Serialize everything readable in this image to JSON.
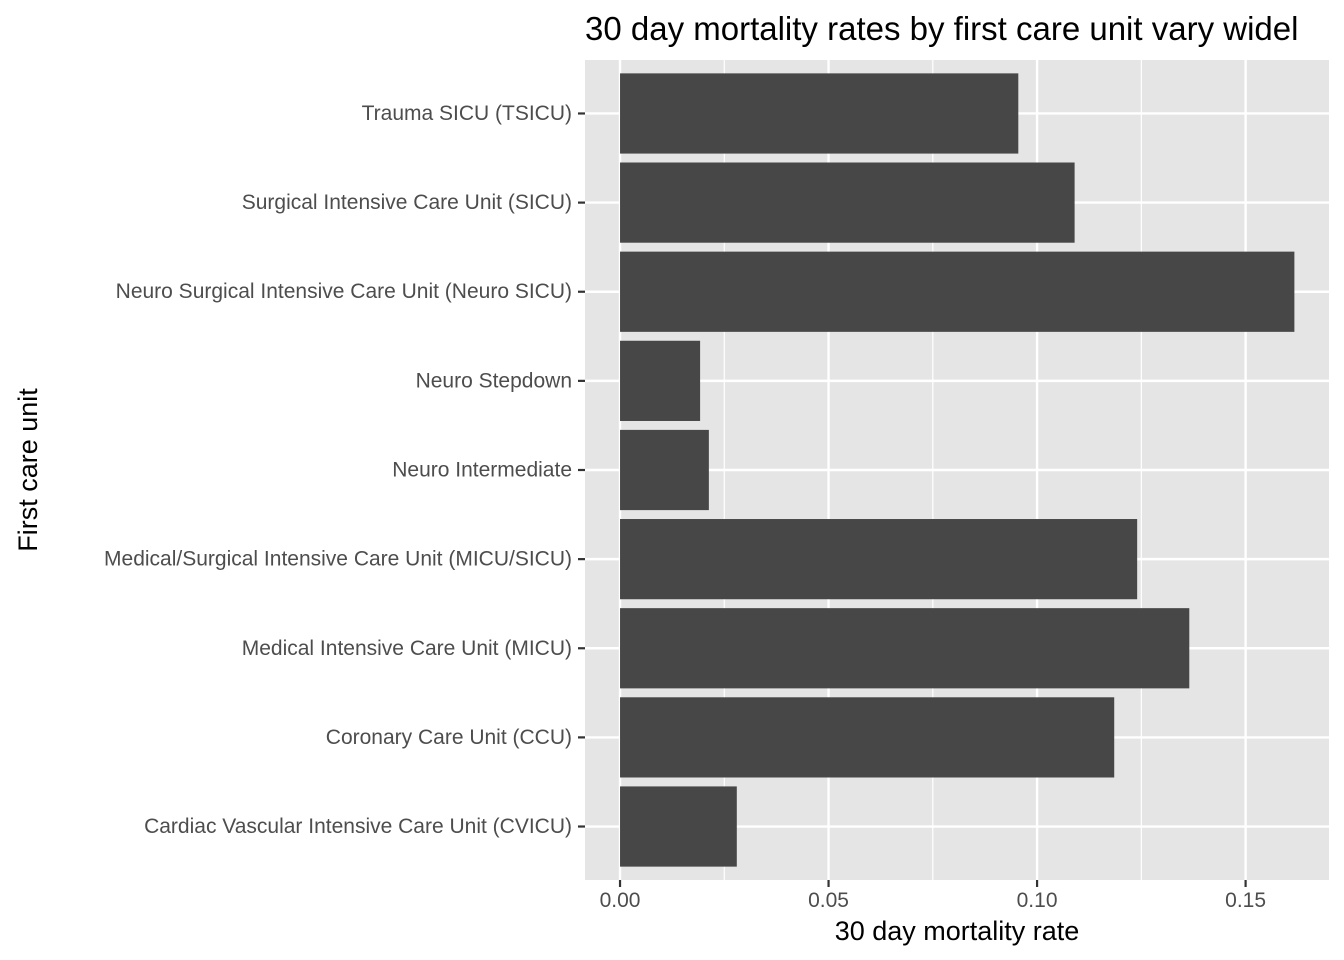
{
  "chart_data": {
    "type": "bar",
    "orientation": "horizontal",
    "title": "30 day mortality rates by first care unit vary widel",
    "xlabel": "30 day mortality rate",
    "ylabel": "First care unit",
    "categories": [
      "Cardiac Vascular Intensive Care Unit (CVICU)",
      "Coronary Care Unit (CCU)",
      "Medical Intensive Care Unit (MICU)",
      "Medical/Surgical Intensive Care Unit (MICU/SICU)",
      "Neuro Intermediate",
      "Neuro Stepdown",
      "Neuro Surgical Intensive Care Unit (Neuro SICU)",
      "Surgical Intensive Care Unit (SICU)",
      "Trauma SICU (TSICU)"
    ],
    "values": [
      0.028,
      0.1185,
      0.1365,
      0.124,
      0.0213,
      0.0192,
      0.1617,
      0.109,
      0.0955
    ],
    "xlim": [
      -0.0084,
      0.17
    ],
    "xticks": [
      0.0,
      0.05,
      0.1,
      0.15
    ],
    "xtick_labels": [
      "0.00",
      "0.05",
      "0.10",
      "0.15"
    ],
    "grid": true,
    "legend": "none",
    "colors": {
      "bar": "#474747",
      "panel": "#e5e5e5",
      "grid": "#ffffff",
      "tick": "#333333"
    }
  }
}
